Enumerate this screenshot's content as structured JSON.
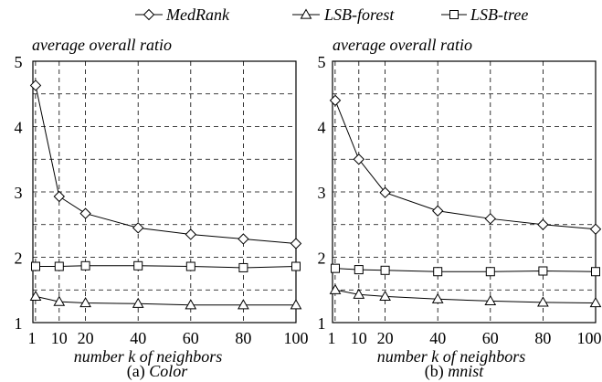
{
  "legend": [
    {
      "name": "MedRank",
      "marker": "diamond"
    },
    {
      "name": "LSB-forest",
      "marker": "triangle"
    },
    {
      "name": "LSB-tree",
      "marker": "square"
    }
  ],
  "chart_data": [
    {
      "type": "line",
      "title": "average overall ratio",
      "caption_prefix": "(a) ",
      "caption_name": "Color",
      "xlabel": "number k of neighbors",
      "x": [
        1,
        10,
        20,
        40,
        60,
        80,
        100
      ],
      "xticks": [
        1,
        10,
        20,
        40,
        60,
        80,
        100
      ],
      "xtick_labels": [
        "1",
        "10",
        "20",
        "40",
        "60",
        "80",
        "100"
      ],
      "xlim": [
        0,
        100
      ],
      "ylim": [
        1,
        5
      ],
      "yticks": [
        1,
        2,
        3,
        4,
        5
      ],
      "grid": true,
      "series": [
        {
          "name": "MedRank",
          "marker": "diamond",
          "values": [
            4.63,
            2.93,
            2.67,
            2.45,
            2.35,
            2.28,
            2.21
          ]
        },
        {
          "name": "LSB-forest",
          "marker": "triangle",
          "values": [
            1.4,
            1.32,
            1.3,
            1.29,
            1.27,
            1.27,
            1.27
          ]
        },
        {
          "name": "LSB-tree",
          "marker": "square",
          "values": [
            1.86,
            1.86,
            1.87,
            1.87,
            1.86,
            1.84,
            1.86
          ]
        }
      ]
    },
    {
      "type": "line",
      "title": "average overall ratio",
      "caption_prefix": "(b) ",
      "caption_name": "mnist",
      "xlabel": "number k of neighbors",
      "x": [
        1,
        10,
        20,
        40,
        60,
        80,
        100
      ],
      "xticks": [
        1,
        10,
        20,
        40,
        60,
        80,
        100
      ],
      "xtick_labels": [
        "1",
        "10",
        "20",
        "40",
        "60",
        "80",
        "100"
      ],
      "xlim": [
        0,
        100
      ],
      "ylim": [
        1,
        5
      ],
      "yticks": [
        1,
        2,
        3,
        4,
        5
      ],
      "grid": true,
      "series": [
        {
          "name": "MedRank",
          "marker": "diamond",
          "values": [
            4.4,
            3.5,
            2.99,
            2.71,
            2.59,
            2.5,
            2.43
          ]
        },
        {
          "name": "LSB-forest",
          "marker": "triangle",
          "values": [
            1.5,
            1.43,
            1.4,
            1.36,
            1.33,
            1.31,
            1.3
          ]
        },
        {
          "name": "LSB-tree",
          "marker": "square",
          "values": [
            1.83,
            1.81,
            1.8,
            1.78,
            1.78,
            1.79,
            1.78
          ]
        }
      ]
    }
  ]
}
